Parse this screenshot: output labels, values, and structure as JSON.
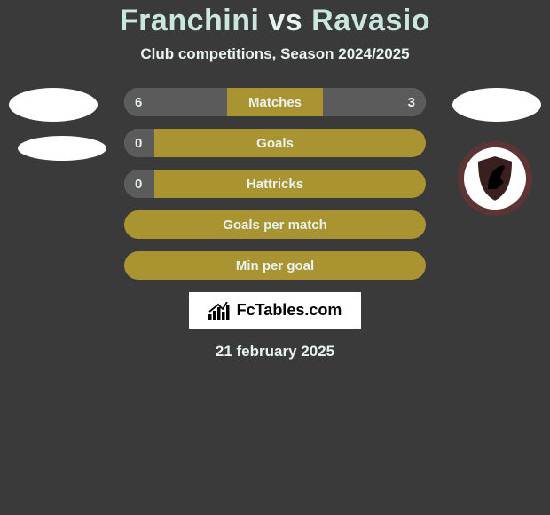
{
  "title": {
    "p1": "Franchini",
    "vs": "vs",
    "p2": "Ravasio"
  },
  "subtitle": "Club competitions, Season 2024/2025",
  "colors": {
    "bar_bg": "#a99431",
    "fill_left": "#5b5b5b",
    "fill_right": "#5b5b5b",
    "text": "#e8f2ef",
    "page_bg": "#3a3a3a",
    "logo_ring": "#5e3535",
    "logo_inner": "#ffffff",
    "shield_bg": "#3a1f1f",
    "shield_horse": "#000000"
  },
  "bars": [
    {
      "label": "Matches",
      "left": "6",
      "right": "3",
      "left_pct": 34,
      "right_pct": 34
    },
    {
      "label": "Goals",
      "left": "0",
      "right": "",
      "left_pct": 10,
      "right_pct": 0
    },
    {
      "label": "Hattricks",
      "left": "0",
      "right": "",
      "left_pct": 10,
      "right_pct": 0
    },
    {
      "label": "Goals per match",
      "left": "",
      "right": "",
      "left_pct": 0,
      "right_pct": 0
    },
    {
      "label": "Min per goal",
      "left": "",
      "right": "",
      "left_pct": 0,
      "right_pct": 0
    }
  ],
  "footer_brand": "FcTables.com",
  "date": "21 february 2025"
}
